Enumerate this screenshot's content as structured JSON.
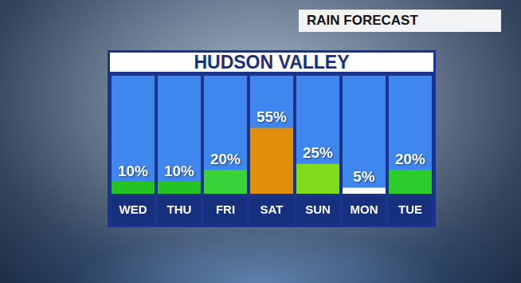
{
  "chart_data": {
    "type": "bar",
    "title": "HUDSON VALLEY",
    "subtitle": "RAIN FORECAST",
    "categories": [
      "WED",
      "THU",
      "FRI",
      "SAT",
      "SUN",
      "MON",
      "TUE"
    ],
    "values": [
      10,
      10,
      20,
      55,
      25,
      5,
      20
    ],
    "value_labels": [
      "10%",
      "10%",
      "20%",
      "55%",
      "25%",
      "5%",
      "20%"
    ],
    "colors": [
      "#22c322",
      "#22c322",
      "#3ad43a",
      "#e08e0b",
      "#7fdc1c",
      "#ffffff",
      "#2ccc2c"
    ],
    "ylim": [
      0,
      100
    ],
    "yticks": [
      0,
      100
    ],
    "grid": false,
    "data_labels": true,
    "tick_labels": "x"
  }
}
